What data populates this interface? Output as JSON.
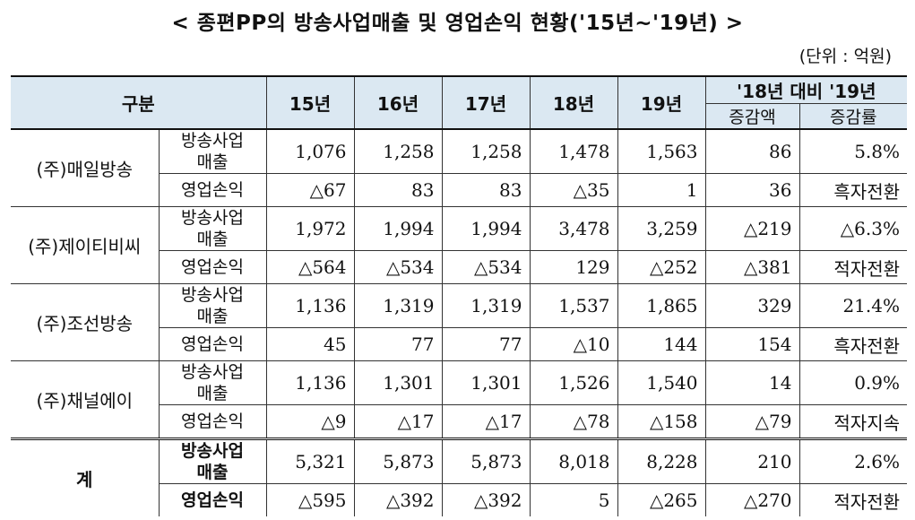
{
  "title": "< 종편PP의 방송사업매출 및 영업손익 현황('15년~'19년) >",
  "unit": "(단위 : 억원)",
  "headers": {
    "category": "구분",
    "years": [
      "15년",
      "16년",
      "17년",
      "18년",
      "19년"
    ],
    "compare": "'18년 대비 '19년",
    "increase_amount": "증감액",
    "increase_rate": "증감률"
  },
  "item_labels": {
    "revenue": "방송사업\n매출",
    "operating": "영업손익"
  },
  "companies": [
    {
      "name": "(주)매일방송",
      "revenue": [
        "1,076",
        "1,258",
        "1,258",
        "1,478",
        "1,563",
        "86",
        "5.8%"
      ],
      "operating": [
        "△67",
        "83",
        "83",
        "△35",
        "1",
        "36",
        "흑자전환"
      ]
    },
    {
      "name": "(주)제이티비씨",
      "revenue": [
        "1,972",
        "1,994",
        "1,994",
        "3,478",
        "3,259",
        "△219",
        "△6.3%"
      ],
      "operating": [
        "△564",
        "△534",
        "△534",
        "129",
        "△252",
        "△381",
        "적자전환"
      ]
    },
    {
      "name": "(주)조선방송",
      "revenue": [
        "1,136",
        "1,319",
        "1,319",
        "1,537",
        "1,865",
        "329",
        "21.4%"
      ],
      "operating": [
        "45",
        "77",
        "77",
        "△10",
        "144",
        "154",
        "흑자전환"
      ]
    },
    {
      "name": "(주)채널에이",
      "revenue": [
        "1,136",
        "1,301",
        "1,301",
        "1,526",
        "1,540",
        "14",
        "0.9%"
      ],
      "operating": [
        "△9",
        "△17",
        "△17",
        "△78",
        "△158",
        "△79",
        "적자지속"
      ]
    }
  ],
  "total": {
    "name": "계",
    "revenue": [
      "5,321",
      "5,873",
      "5,873",
      "8,018",
      "8,228",
      "210",
      "2.6%"
    ],
    "operating": [
      "△595",
      "△392",
      "△392",
      "5",
      "△265",
      "△270",
      "적자전환"
    ]
  }
}
